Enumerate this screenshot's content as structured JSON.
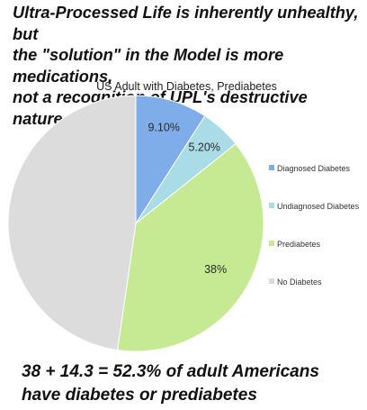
{
  "headline": "Ultra-Processed Life is inherently unhealthy, but\nthe \"solution\" in the Model is more medications,\nnot a recognition of UPL's destructive nature.",
  "conclusion": "38 + 14.3 = 52.3% of adult Americans\nhave diabetes or prediabetes",
  "chart_data": {
    "type": "pie",
    "title": "US Adult with Diabetes, Prediabetes",
    "legend_position": "right",
    "slices": [
      {
        "name": "Diagnosed Diabetes",
        "value": 9.1,
        "label": "9.10%",
        "color": "#7fadea",
        "label_color": "#2b2b2b"
      },
      {
        "name": "Undiagnosed Diabetes",
        "value": 5.2,
        "label": "5.20%",
        "color": "#a9dce6",
        "label_color": "#2b2b2b"
      },
      {
        "name": "Prediabetes",
        "value": 38,
        "label": "38%",
        "color": "#c6ea94",
        "label_color": "#2b2b2b"
      },
      {
        "name": "No Diabetes",
        "value": 47.7,
        "label": "",
        "color": "#dcdcdc",
        "label_color": "#2b2b2b"
      }
    ]
  }
}
